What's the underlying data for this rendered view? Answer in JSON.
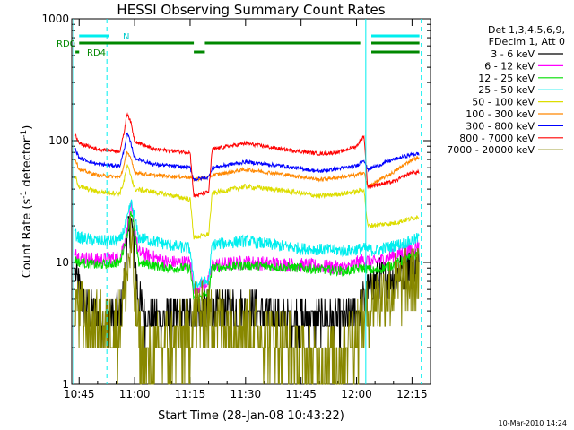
{
  "chart_data": {
    "type": "line",
    "title": "HESSI Observing Summary Count Rates",
    "xlabel": "Start Time (28-Jan-08 10:43:22)",
    "ylabel_main": "Count Rate (s",
    "ylabel_sup1": "-1",
    "ylabel_mid": " detector",
    "ylabel_sup2": "-1",
    "ylabel_end": ")",
    "y_scale": "log",
    "ylim": [
      1,
      1000
    ],
    "xlim_minutes": [
      -2,
      95
    ],
    "x_ticks": [
      {
        "label": "10:45",
        "t": 0
      },
      {
        "label": "11:00",
        "t": 15
      },
      {
        "label": "11:15",
        "t": 30
      },
      {
        "label": "11:30",
        "t": 45
      },
      {
        "label": "11:45",
        "t": 60
      },
      {
        "label": "12:00",
        "t": 75
      },
      {
        "label": "12:15",
        "t": 90
      }
    ],
    "y_ticks": [
      {
        "label": "1",
        "v": 1
      },
      {
        "label": "10",
        "v": 10
      },
      {
        "label": "100",
        "v": 100
      },
      {
        "label": "1000",
        "v": 1000
      }
    ],
    "legend": {
      "header": [
        "Det 1,3,4,5,6,9,",
        "FDecim 1, Att 0"
      ],
      "entries": [
        {
          "label": "3 - 6 keV",
          "color": "#000000"
        },
        {
          "label": "6 - 12 keV",
          "color": "#ff00ff"
        },
        {
          "label": "12 - 25 keV",
          "color": "#00dd00"
        },
        {
          "label": "25 - 50 keV",
          "color": "#00eeee"
        },
        {
          "label": "50 - 100 keV",
          "color": "#dddd00"
        },
        {
          "label": "100 - 300 keV",
          "color": "#ff8800"
        },
        {
          "label": "300 - 800 keV",
          "color": "#0000ff"
        },
        {
          "label": "800 - 7000 keV",
          "color": "#ff0000"
        },
        {
          "label": "7000 - 20000 keV",
          "color": "#888800"
        }
      ]
    },
    "series": [
      {
        "name": "3 - 6 keV",
        "color": "#000000",
        "noise": 0.35,
        "points": [
          [
            -1,
            8
          ],
          [
            0,
            6
          ],
          [
            2,
            4
          ],
          [
            5,
            3.5
          ],
          [
            8,
            3.5
          ],
          [
            11,
            3.8
          ],
          [
            12,
            6
          ],
          [
            13,
            14
          ],
          [
            14,
            22
          ],
          [
            15,
            12
          ],
          [
            16,
            5
          ],
          [
            18,
            3.5
          ],
          [
            24,
            3.5
          ],
          [
            30,
            3.5
          ],
          [
            31,
            4
          ],
          [
            36,
            4
          ],
          [
            45,
            4.2
          ],
          [
            55,
            3.5
          ],
          [
            65,
            3.3
          ],
          [
            72,
            3.3
          ],
          [
            75,
            3.8
          ],
          [
            77,
            5
          ],
          [
            80,
            7
          ],
          [
            85,
            8
          ],
          [
            90,
            9.5
          ],
          [
            92,
            9.5
          ]
        ]
      },
      {
        "name": "6 - 12 keV",
        "color": "#ff00ff",
        "noise": 0.12,
        "points": [
          [
            -1,
            13
          ],
          [
            0,
            11
          ],
          [
            5,
            10.5
          ],
          [
            11,
            11
          ],
          [
            13,
            18
          ],
          [
            14,
            28
          ],
          [
            15,
            20
          ],
          [
            16,
            12
          ],
          [
            20,
            11
          ],
          [
            24,
            10
          ],
          [
            30,
            10
          ],
          [
            31,
            6
          ],
          [
            35,
            7
          ],
          [
            36,
            9.5
          ],
          [
            45,
            10
          ],
          [
            60,
            9.5
          ],
          [
            72,
            9
          ],
          [
            77,
            10.5
          ],
          [
            80,
            10
          ],
          [
            90,
            13
          ],
          [
            92,
            14
          ]
        ]
      },
      {
        "name": "12 - 25 keV",
        "color": "#00dd00",
        "noise": 0.08,
        "points": [
          [
            -1,
            10.5
          ],
          [
            0,
            10
          ],
          [
            5,
            9.5
          ],
          [
            11,
            10
          ],
          [
            13,
            17
          ],
          [
            14,
            27
          ],
          [
            15,
            18
          ],
          [
            16,
            10
          ],
          [
            24,
            9
          ],
          [
            30,
            9
          ],
          [
            31,
            5
          ],
          [
            35,
            5.5
          ],
          [
            36,
            9
          ],
          [
            45,
            9.5
          ],
          [
            60,
            9
          ],
          [
            72,
            8.5
          ],
          [
            77,
            9
          ],
          [
            80,
            8.5
          ],
          [
            90,
            11
          ],
          [
            92,
            12
          ]
        ]
      },
      {
        "name": "25 - 50 keV",
        "color": "#00eeee",
        "noise": 0.1,
        "points": [
          [
            -1,
            17
          ],
          [
            0,
            16
          ],
          [
            5,
            15
          ],
          [
            11,
            15
          ],
          [
            13,
            22
          ],
          [
            14,
            31
          ],
          [
            15,
            24
          ],
          [
            16,
            16
          ],
          [
            24,
            14
          ],
          [
            30,
            13
          ],
          [
            31,
            6.5
          ],
          [
            35,
            7
          ],
          [
            36,
            14
          ],
          [
            45,
            15
          ],
          [
            60,
            13
          ],
          [
            72,
            12.5
          ],
          [
            77,
            13
          ],
          [
            80,
            12.5
          ],
          [
            90,
            15
          ],
          [
            92,
            16
          ]
        ]
      },
      {
        "name": "50 - 100 keV",
        "color": "#dddd00",
        "noise": 0.04,
        "points": [
          [
            -1,
            50
          ],
          [
            0,
            42
          ],
          [
            5,
            38
          ],
          [
            11,
            37
          ],
          [
            12,
            45
          ],
          [
            13,
            62
          ],
          [
            14,
            52
          ],
          [
            15,
            40
          ],
          [
            20,
            38
          ],
          [
            30,
            33
          ],
          [
            31,
            16
          ],
          [
            35,
            17
          ],
          [
            36,
            37
          ],
          [
            45,
            42
          ],
          [
            55,
            39
          ],
          [
            65,
            35
          ],
          [
            75,
            38
          ],
          [
            77,
            40
          ],
          [
            78,
            20
          ],
          [
            85,
            21
          ],
          [
            90,
            23
          ],
          [
            92,
            24
          ]
        ]
      },
      {
        "name": "100 - 300 keV",
        "color": "#ff8800",
        "noise": 0.03,
        "points": [
          [
            -1,
            70
          ],
          [
            0,
            58
          ],
          [
            5,
            52
          ],
          [
            11,
            50
          ],
          [
            12,
            60
          ],
          [
            13,
            82
          ],
          [
            14,
            70
          ],
          [
            15,
            55
          ],
          [
            20,
            52
          ],
          [
            30,
            50
          ],
          [
            31,
            48
          ],
          [
            35,
            50
          ],
          [
            36,
            52
          ],
          [
            45,
            58
          ],
          [
            55,
            53
          ],
          [
            65,
            48
          ],
          [
            75,
            52
          ],
          [
            77,
            55
          ],
          [
            78,
            42
          ],
          [
            85,
            55
          ],
          [
            90,
            70
          ],
          [
            92,
            72
          ]
        ]
      },
      {
        "name": "300 - 800 keV",
        "color": "#0000ff",
        "noise": 0.03,
        "points": [
          [
            -1,
            85
          ],
          [
            0,
            72
          ],
          [
            5,
            64
          ],
          [
            11,
            62
          ],
          [
            12,
            80
          ],
          [
            13,
            115
          ],
          [
            14,
            95
          ],
          [
            15,
            72
          ],
          [
            20,
            64
          ],
          [
            30,
            60
          ],
          [
            31,
            48
          ],
          [
            35,
            50
          ],
          [
            36,
            60
          ],
          [
            45,
            67
          ],
          [
            55,
            62
          ],
          [
            65,
            56
          ],
          [
            75,
            62
          ],
          [
            77,
            70
          ],
          [
            78,
            58
          ],
          [
            85,
            70
          ],
          [
            90,
            77
          ],
          [
            92,
            78
          ]
        ]
      },
      {
        "name": "800 - 7000 keV",
        "color": "#ff0000",
        "noise": 0.03,
        "points": [
          [
            -1,
            110
          ],
          [
            0,
            95
          ],
          [
            5,
            85
          ],
          [
            11,
            82
          ],
          [
            12,
            110
          ],
          [
            13,
            170
          ],
          [
            14,
            140
          ],
          [
            15,
            100
          ],
          [
            20,
            85
          ],
          [
            30,
            80
          ],
          [
            31,
            35
          ],
          [
            35,
            38
          ],
          [
            36,
            85
          ],
          [
            45,
            95
          ],
          [
            55,
            85
          ],
          [
            65,
            78
          ],
          [
            70,
            80
          ],
          [
            75,
            90
          ],
          [
            77,
            110
          ],
          [
            78,
            42
          ],
          [
            85,
            46
          ],
          [
            90,
            55
          ],
          [
            92,
            55
          ]
        ]
      },
      {
        "name": "7000 - 20000 keV",
        "color": "#888800",
        "noise": 0.6,
        "points": [
          [
            -1,
            5
          ],
          [
            0,
            4
          ],
          [
            3,
            3
          ],
          [
            8,
            2.8
          ],
          [
            11,
            3
          ],
          [
            13,
            8
          ],
          [
            14,
            15
          ],
          [
            15,
            6
          ],
          [
            16,
            2.5
          ],
          [
            18,
            1.4
          ],
          [
            22,
            2
          ],
          [
            30,
            2.5
          ],
          [
            31,
            4
          ],
          [
            36,
            3.5
          ],
          [
            45,
            3
          ],
          [
            55,
            2.2
          ],
          [
            62,
            1.5
          ],
          [
            68,
            1.6
          ],
          [
            72,
            2
          ],
          [
            76,
            3
          ],
          [
            80,
            5
          ],
          [
            85,
            6
          ],
          [
            90,
            7
          ],
          [
            92,
            7
          ]
        ]
      }
    ],
    "state_bars": {
      "labels": {
        "rd0": "RD0",
        "rd4": "RD4",
        "n": "N"
      },
      "rd0_segments": [
        [
          0,
          31
        ],
        [
          34,
          76
        ],
        [
          79,
          92
        ]
      ],
      "rd4_segments": [
        [
          -1,
          0
        ],
        [
          31,
          34
        ],
        [
          79,
          92
        ]
      ],
      "n_segments": [
        [
          0,
          8
        ]
      ],
      "orbit_lines_solid": [
        -1.5,
        77.5
      ],
      "orbit_lines_dashed": [
        7.5,
        92.5
      ]
    },
    "timestamp": "10-Mar-2010 14:24"
  }
}
